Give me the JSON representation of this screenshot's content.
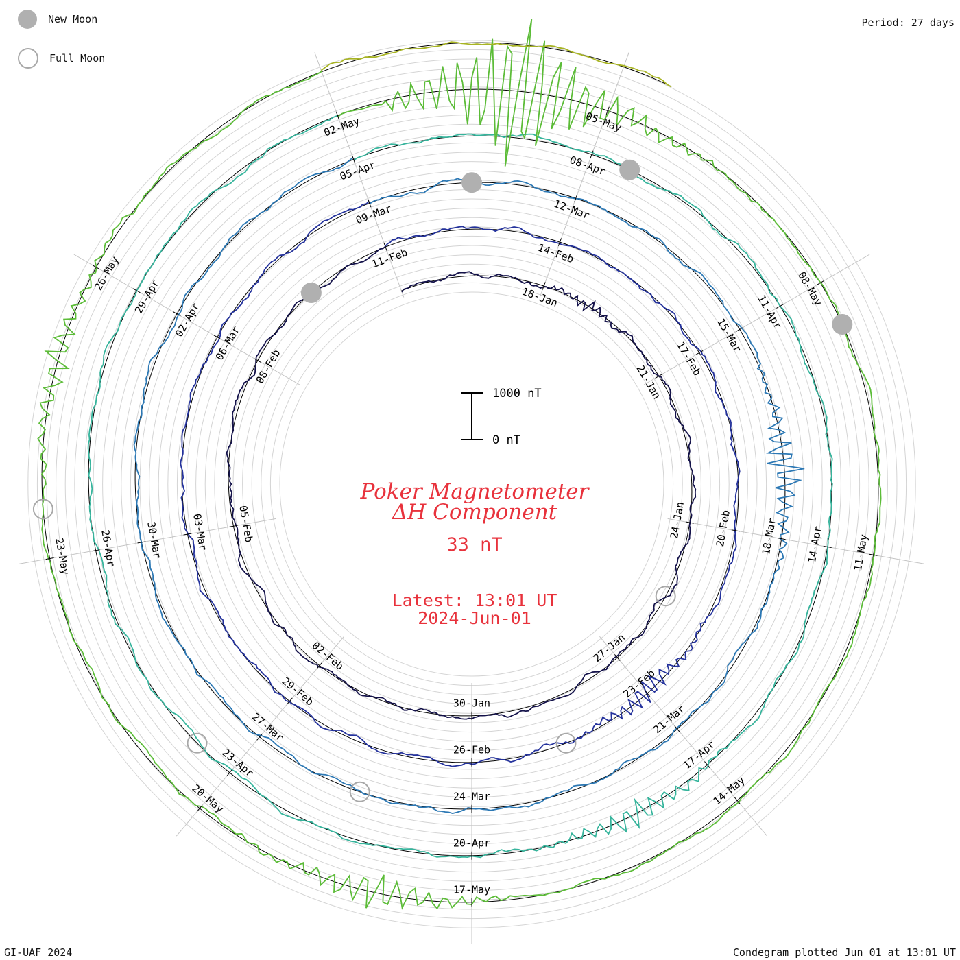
{
  "legend": {
    "new_moon": {
      "label": "New Moon",
      "color": "#b0b0b0"
    },
    "full_moon": {
      "label": "Full Moon",
      "color": "#a8a8a8"
    }
  },
  "period_label": "Period: 27 days",
  "footer": {
    "left": "GI-UAF 2024",
    "right": "Condegram plotted Jun 01 at 13:01 UT"
  },
  "center": {
    "title_line1": "Poker Magnetometer",
    "title_line2": "ΔH Component",
    "value": "33 nT",
    "latest_line1": "Latest: 13:01 UT",
    "latest_line2": "2024-Jun-01",
    "text_color": "#e8323c"
  },
  "scale_bar": {
    "top_label": "1000 nT",
    "bottom_label": "0 nT"
  },
  "chart_data": {
    "type": "line",
    "subtype": "condegram-spiral",
    "start_date": "2024-01-15",
    "end_date": "2024-06-01",
    "period_days": 27,
    "units": "nT",
    "tick_labels": [
      "18-Jan",
      "21-Jan",
      "24-Jan",
      "27-Jan",
      "30-Jan",
      "02-Feb",
      "05-Feb",
      "08-Feb",
      "11-Feb",
      "14-Feb",
      "17-Feb",
      "20-Feb",
      "23-Feb",
      "26-Feb",
      "29-Feb",
      "03-Mar",
      "06-Mar",
      "09-Mar",
      "12-Mar",
      "15-Mar",
      "18-Mar",
      "21-Mar",
      "24-Mar",
      "27-Mar",
      "30-Mar",
      "02-Apr",
      "05-Apr",
      "08-Apr",
      "11-Apr",
      "14-Apr",
      "17-Apr",
      "20-Apr",
      "23-Apr",
      "26-Apr",
      "29-Apr",
      "02-May",
      "05-May",
      "08-May",
      "11-May",
      "14-May",
      "17-May",
      "20-May",
      "23-May",
      "26-May"
    ],
    "cycle_colors": [
      "#14124a",
      "#24329c",
      "#2c78b4",
      "#36b49c",
      "#5cbc38",
      "#a8b424",
      "#b88a1c",
      "#c05a14",
      "#b81e14"
    ],
    "disturbances": [
      {
        "day": 4,
        "amplitude": 120
      },
      {
        "day": 39,
        "amplitude": 260
      },
      {
        "day": 62,
        "amplitude": 420
      },
      {
        "day": 94,
        "amplitude": 300
      },
      {
        "day": 110,
        "amplitude": 1800
      },
      {
        "day": 124,
        "amplitude": 420
      },
      {
        "day": 131,
        "amplitude": 300
      }
    ],
    "new_moons": [
      "2024-02-09",
      "2024-03-10",
      "2024-04-08",
      "2024-05-08"
    ],
    "full_moons": [
      "2024-01-25",
      "2024-02-24",
      "2024-03-25",
      "2024-04-23",
      "2024-05-23"
    ],
    "grid": true
  }
}
